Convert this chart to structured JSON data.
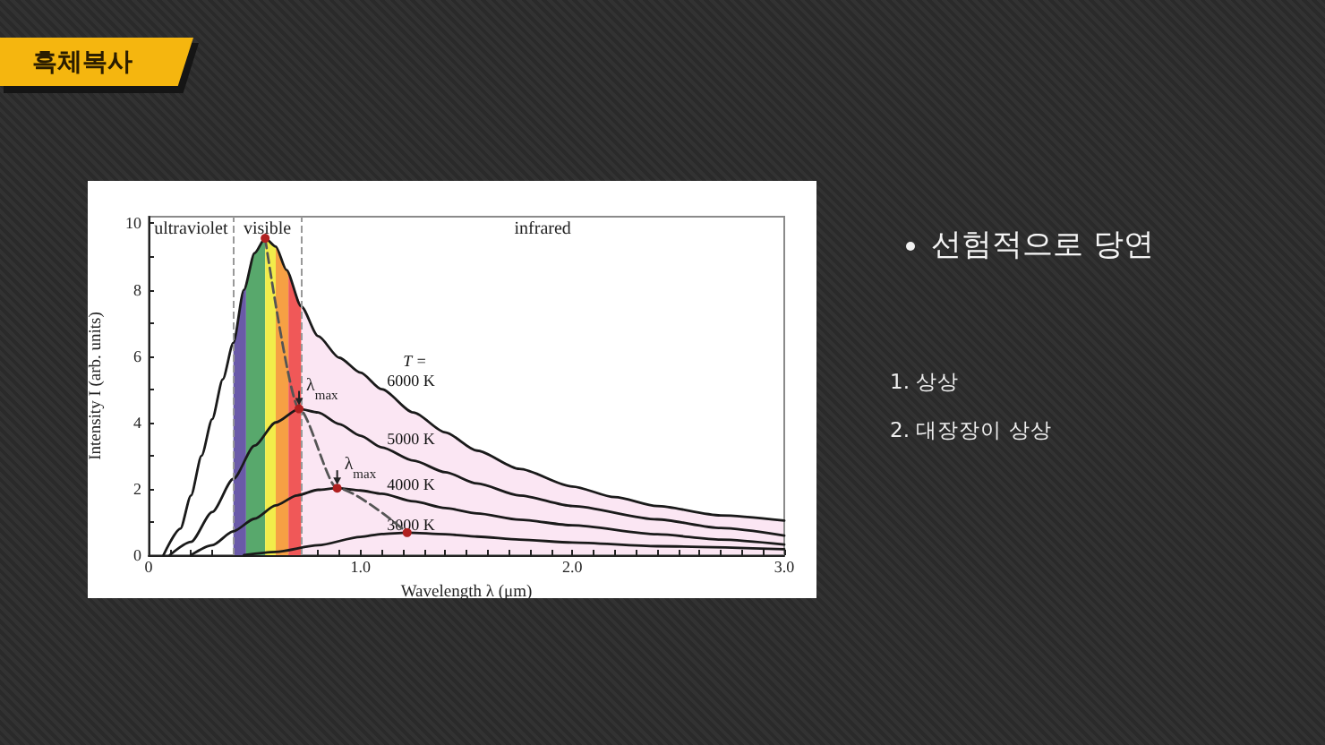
{
  "chart_data": {
    "type": "line",
    "title": "흑체복사",
    "xlabel": "Wavelength λ (μm)",
    "ylabel": "Intensity I (arb. units)",
    "legend_title": "T =",
    "annotations": [
      "ultraviolet",
      "visible",
      "infrared",
      {
        "text": "λ$_{max}$",
        "x": 0.71,
        "y": 4.41
      },
      {
        "text": "λ$_{max}$",
        "x": 0.89,
        "y": 2.02
      },
      "선험적으로 당연",
      "1. 상상",
      "2. 대장장이 상상"
    ],
    "series": [
      {
        "name": "6000 K",
        "color": "#1a1a1a",
        "x": [
          0.07,
          0.15,
          0.2,
          0.25,
          0.3,
          0.35,
          0.4,
          0.45,
          0.5,
          0.55,
          0.6,
          0.65,
          0.72,
          0.8,
          0.9,
          1.0,
          1.1,
          1.25,
          1.4,
          1.55,
          1.75,
          2.0,
          2.2,
          2.4,
          2.7,
          3.0
        ],
        "values": [
          0,
          0.8,
          1.8,
          3.0,
          4.1,
          5.3,
          6.4,
          8.0,
          9.1,
          9.55,
          9.3,
          8.6,
          7.5,
          6.6,
          5.95,
          5.5,
          5.0,
          4.3,
          3.7,
          3.15,
          2.6,
          2.07,
          1.75,
          1.48,
          1.2,
          1.04
        ]
      },
      {
        "name": "5000 K",
        "color": "#1a1a1a",
        "x": [
          0.1,
          0.2,
          0.3,
          0.4,
          0.5,
          0.6,
          0.71,
          0.8,
          0.9,
          1.0,
          1.1,
          1.25,
          1.4,
          1.55,
          1.75,
          2.0,
          2.4,
          2.7,
          3.0
        ],
        "values": [
          0,
          0.4,
          1.3,
          2.3,
          3.3,
          4.0,
          4.41,
          4.3,
          3.95,
          3.6,
          3.25,
          2.85,
          2.5,
          2.16,
          1.8,
          1.48,
          1.08,
          0.82,
          0.59
        ]
      },
      {
        "name": "4000 K",
        "color": "#1a1a1a",
        "x": [
          0.2,
          0.3,
          0.4,
          0.5,
          0.6,
          0.7,
          0.8,
          0.89,
          1.0,
          1.1,
          1.25,
          1.4,
          1.55,
          1.75,
          2.0,
          2.4,
          2.7,
          3.0
        ],
        "values": [
          0,
          0.3,
          0.72,
          1.1,
          1.5,
          1.8,
          1.97,
          2.02,
          1.95,
          1.85,
          1.62,
          1.42,
          1.26,
          1.07,
          0.9,
          0.63,
          0.47,
          0.32
        ]
      },
      {
        "name": "3000 K",
        "color": "#1a1a1a",
        "x": [
          0.45,
          0.6,
          0.8,
          1.0,
          1.1,
          1.22,
          1.4,
          1.55,
          1.75,
          2.0,
          2.4,
          3.0
        ],
        "values": [
          0,
          0.1,
          0.3,
          0.55,
          0.64,
          0.68,
          0.63,
          0.56,
          0.47,
          0.38,
          0.27,
          0.18
        ]
      },
      {
        "color": "#555555",
        "line_style": "dashed",
        "marker": "circle",
        "colors": [
          "#b02020",
          "#b02020",
          "#b02020",
          "#b02020"
        ],
        "x": [
          0.55,
          0.71,
          0.89,
          1.22
        ],
        "values": [
          9.55,
          4.41,
          2.02,
          0.68
        ]
      }
    ],
    "marker": "none",
    "xlim": [
      0,
      3
    ],
    "ylim": [
      0,
      10.2
    ],
    "xticks": [
      0,
      {
        "value": 0.1,
        "label": null
      },
      {
        "value": 0.2,
        "label": null
      },
      {
        "value": 0.3,
        "label": null
      },
      {
        "value": 0.4,
        "label": null
      },
      {
        "value": 0.5,
        "label": null
      },
      {
        "value": 0.6,
        "label": null
      },
      {
        "value": 0.7,
        "label": null
      },
      {
        "value": 0.8,
        "label": null
      },
      {
        "value": 0.9,
        "label": null
      },
      {
        "value": 1,
        "label": "1.0"
      },
      {
        "value": 1.1,
        "label": null
      },
      {
        "value": 1.2,
        "label": null
      },
      {
        "value": 1.3,
        "label": null
      },
      {
        "value": 1.4,
        "label": null
      },
      {
        "value": 1.5,
        "label": null
      },
      {
        "value": 1.6,
        "label": null
      },
      {
        "value": 1.7,
        "label": null
      },
      {
        "value": 1.8,
        "label": null
      },
      {
        "value": 1.9,
        "label": null
      },
      {
        "value": 2,
        "label": "2.0"
      },
      {
        "value": 2.1,
        "label": null
      },
      {
        "value": 2.2,
        "label": null
      },
      {
        "value": 2.3,
        "label": null
      },
      {
        "value": 2.4,
        "label": null
      },
      {
        "value": 2.5,
        "label": null
      },
      {
        "value": 2.6,
        "label": null
      },
      {
        "value": 2.7,
        "label": null
      },
      {
        "value": 2.8,
        "label": null
      },
      {
        "value": 2.9,
        "label": null
      },
      {
        "value": 3,
        "label": "3.0"
      }
    ],
    "yticks": [
      0,
      {
        "value": 1,
        "label": null
      },
      2,
      {
        "value": 3,
        "label": null
      },
      4,
      {
        "value": 5,
        "label": null
      },
      6,
      {
        "value": 7,
        "label": null
      },
      8,
      {
        "value": 9,
        "label": null
      },
      10
    ],
    "bands": [
      {
        "axis": "x",
        "from": 0.4,
        "to": 0.46,
        "color": "#6a5aa8"
      },
      {
        "axis": "x",
        "from": 0.46,
        "to": 0.55,
        "color": "#58a86c"
      },
      {
        "axis": "x",
        "from": 0.55,
        "to": 0.6,
        "color": "#f2ec4a"
      },
      {
        "axis": "x",
        "from": 0.6,
        "to": 0.66,
        "color": "#f6a044"
      },
      {
        "axis": "x",
        "from": 0.66,
        "to": 0.72,
        "color": "#f05858"
      }
    ],
    "ref_lines": [
      {
        "axis": "x",
        "value": 0.4,
        "color": "#999999",
        "line_style": "dashed"
      },
      {
        "axis": "x",
        "value": 0.72,
        "color": "#999999",
        "line_style": "dashed"
      }
    ]
  }
}
